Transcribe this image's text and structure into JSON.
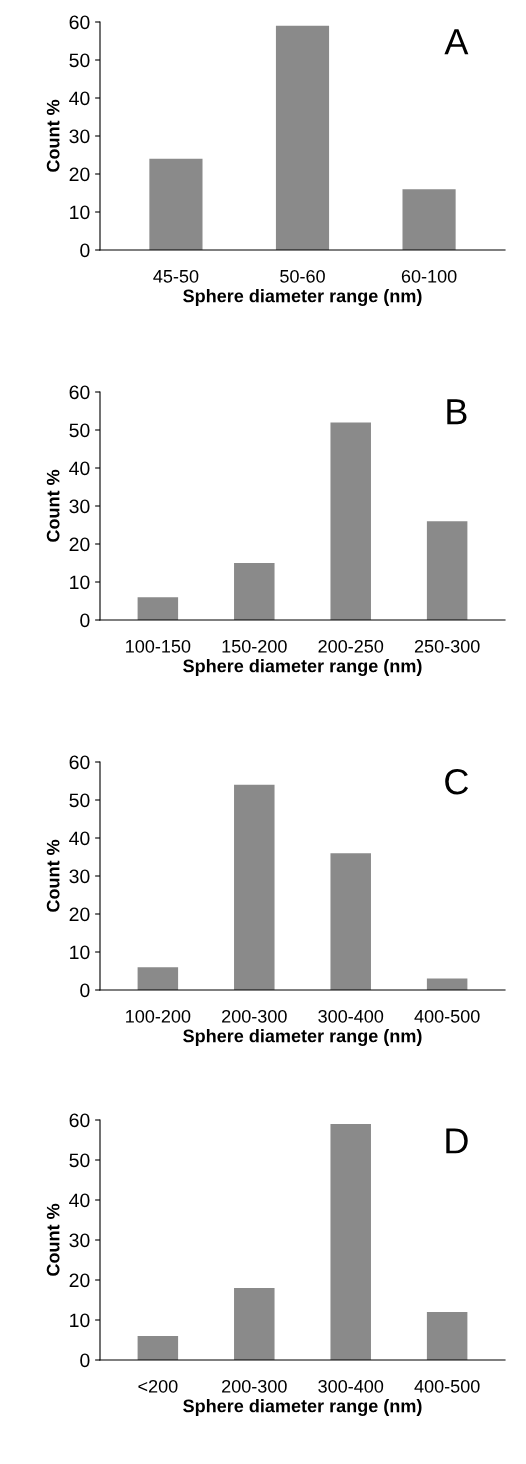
{
  "chart_data": [
    {
      "type": "bar",
      "categories": [
        "45-50",
        "50-60",
        "60-100"
      ],
      "values": [
        24,
        59,
        16
      ],
      "color": "#8a8a8a",
      "ylim": [
        0,
        60
      ],
      "yticks": [
        0,
        10,
        20,
        30,
        40,
        50,
        60
      ],
      "xlabel": "Sphere diameter range (nm)",
      "ylabel": "Count %",
      "annotations": [
        "A"
      ],
      "grid": false,
      "legend": false
    },
    {
      "type": "bar",
      "categories": [
        "100-150",
        "150-200",
        "200-250",
        "250-300"
      ],
      "values": [
        6,
        15,
        52,
        26
      ],
      "color": "#8a8a8a",
      "ylim": [
        0,
        60
      ],
      "yticks": [
        0,
        10,
        20,
        30,
        40,
        50,
        60
      ],
      "xlabel": "Sphere diameter range (nm)",
      "ylabel": "Count %",
      "annotations": [
        "B"
      ],
      "grid": false,
      "legend": false
    },
    {
      "type": "bar",
      "categories": [
        "100-200",
        "200-300",
        "300-400",
        "400-500"
      ],
      "values": [
        6,
        54,
        36,
        3
      ],
      "color": "#8a8a8a",
      "ylim": [
        0,
        60
      ],
      "yticks": [
        0,
        10,
        20,
        30,
        40,
        50,
        60
      ],
      "xlabel": "Sphere diameter range (nm)",
      "ylabel": "Count %",
      "annotations": [
        "C"
      ],
      "grid": false,
      "legend": false
    },
    {
      "type": "bar",
      "categories": [
        "<200",
        "200-300",
        "300-400",
        "400-500"
      ],
      "values": [
        6,
        18,
        59,
        12
      ],
      "color": "#8a8a8a",
      "ylim": [
        0,
        60
      ],
      "yticks": [
        0,
        10,
        20,
        30,
        40,
        50,
        60
      ],
      "xlabel": "Sphere diameter range (nm)",
      "ylabel": "Count %",
      "annotations": [
        "D"
      ],
      "grid": false,
      "legend": false
    }
  ]
}
